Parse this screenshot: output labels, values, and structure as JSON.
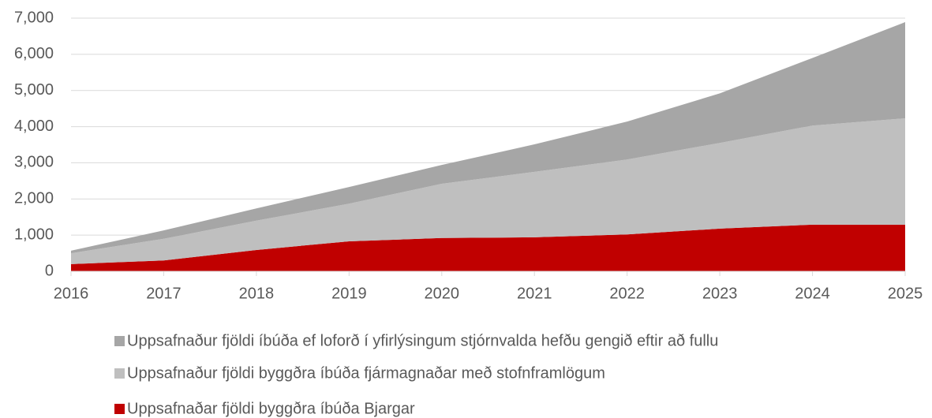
{
  "chart_data": {
    "type": "stacked_area",
    "x": [
      2016,
      2017,
      2018,
      2019,
      2020,
      2021,
      2022,
      2023,
      2024,
      2025
    ],
    "series": [
      {
        "name": "Uppsafnaður fjöldi íbúða ef loforð í yfirlýsingum stjórnvalda hefðu gengið eftir að fullu",
        "color": "#a6a6a6",
        "values": [
          70,
          230,
          340,
          460,
          520,
          760,
          1050,
          1370,
          1870,
          2660
        ]
      },
      {
        "name": "Uppsafnaður fjöldi byggðra íbúða fjármagnaðar með stofnframlögum",
        "color": "#bfbfbf",
        "values": [
          300,
          600,
          810,
          1040,
          1500,
          1810,
          2070,
          2370,
          2740,
          2940
        ]
      },
      {
        "name": "Uppsafnaðar fjöldi byggðra íbúða Bjargar",
        "color": "#c00000",
        "values": [
          200,
          300,
          590,
          830,
          920,
          940,
          1020,
          1180,
          1290,
          1290
        ]
      }
    ],
    "xlim": [
      2016,
      2025
    ],
    "xticks": [
      2016,
      2017,
      2018,
      2019,
      2020,
      2021,
      2022,
      2023,
      2024,
      2025
    ],
    "ylim": [
      0,
      7000
    ],
    "yticks": [
      0,
      {
        "value": 1000,
        "label": "1,000"
      },
      {
        "value": 2000,
        "label": "2,000"
      },
      {
        "value": 3000,
        "label": "3,000"
      },
      {
        "value": 4000,
        "label": "4,000"
      },
      {
        "value": 5000,
        "label": "5,000"
      },
      {
        "value": 6000,
        "label": "6,000"
      },
      {
        "value": 7000,
        "label": "7,000"
      }
    ],
    "grid": true
  }
}
